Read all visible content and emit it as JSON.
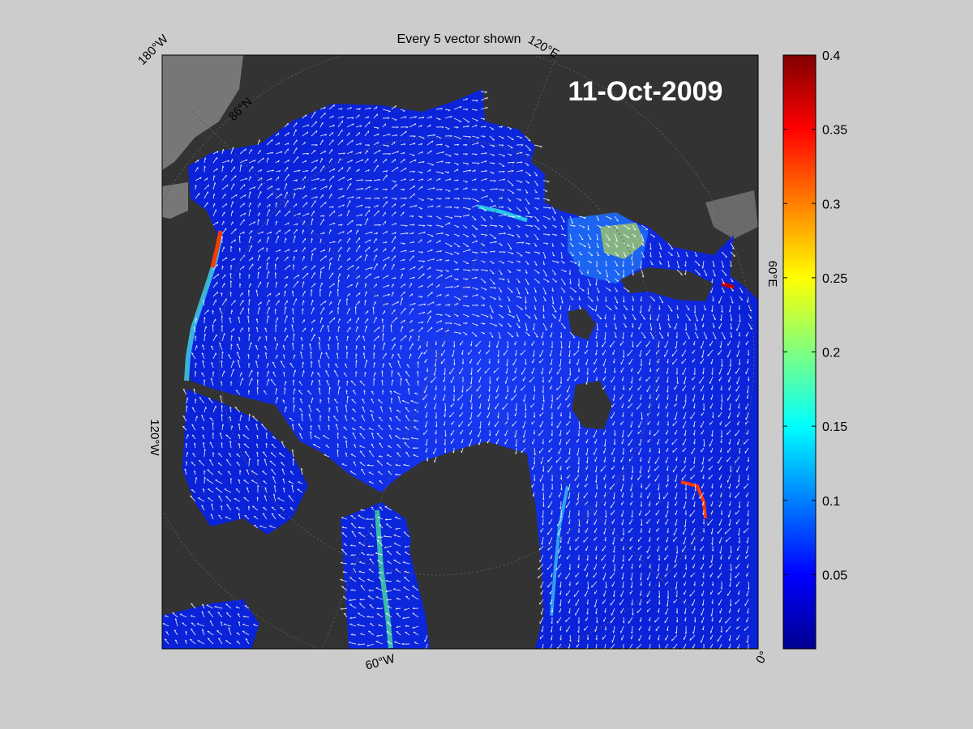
{
  "figure": {
    "title": "Every 5 vector shown",
    "date_label": "11-Oct-2009",
    "background_color": "#cccccc"
  },
  "map": {
    "projection": "polar stereographic (north)",
    "land_color": "#333333",
    "ice_shelf_color": "#777777",
    "ocean_low_color": "#0000cc",
    "vector_color": "#ffffff",
    "graticule_color": "#555555",
    "grid_labels": {
      "lon_180w": "180°W",
      "lon_120e": "120°E",
      "lon_60e": "60°E",
      "lon_120w": "120°W",
      "lon_60w": "60°W",
      "lon_0": "0°",
      "lat_86n": "86°N"
    }
  },
  "colorbar": {
    "colormap": "jet",
    "range": [
      0,
      0.4
    ],
    "tick_labels": [
      "0.4",
      "0.35",
      "0.3",
      "0.25",
      "0.2",
      "0.15",
      "0.1",
      "0.05"
    ]
  }
}
